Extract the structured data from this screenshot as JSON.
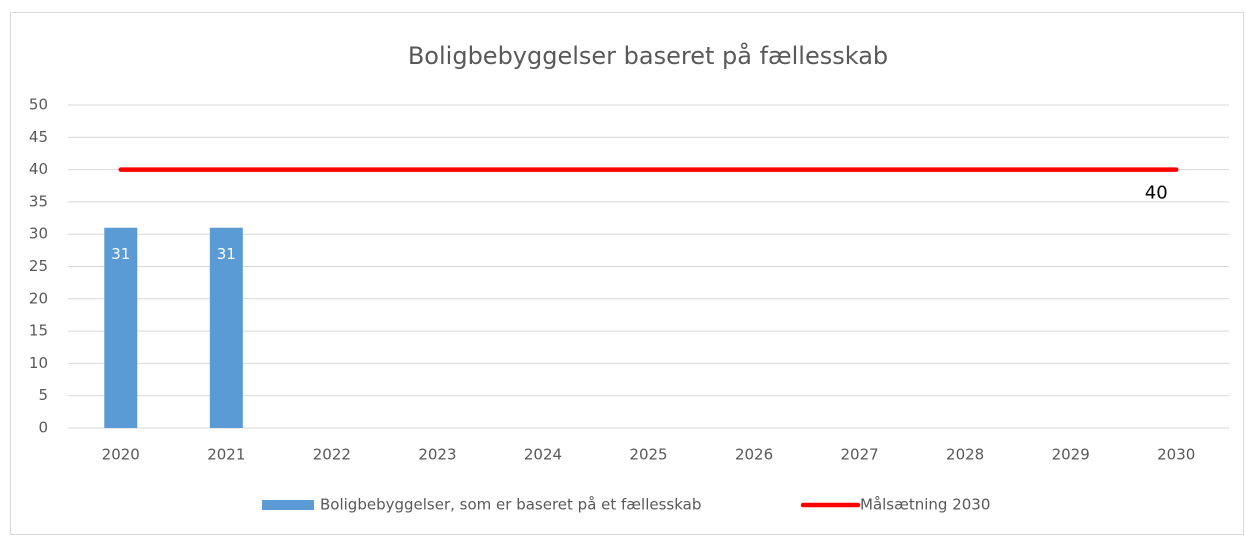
{
  "chart_data": {
    "type": "bar",
    "title": "Boligbebyggelser baseret på fællesskab",
    "categories": [
      "2020",
      "2021",
      "2022",
      "2023",
      "2024",
      "2025",
      "2026",
      "2027",
      "2028",
      "2029",
      "2030"
    ],
    "series": [
      {
        "name": "Boligbebyggelser, som er baseret på et fællesskab",
        "type": "bar",
        "color": "#5b9bd5",
        "values": [
          31,
          31,
          null,
          null,
          null,
          null,
          null,
          null,
          null,
          null,
          null
        ],
        "data_labels": true
      },
      {
        "name": "Målsætning 2030",
        "type": "line",
        "color": "#ff0000",
        "values": [
          40,
          40,
          40,
          40,
          40,
          40,
          40,
          40,
          40,
          40,
          40
        ],
        "value_labels": [
          null,
          null,
          null,
          null,
          null,
          null,
          null,
          null,
          null,
          null,
          "40"
        ]
      }
    ],
    "ylim": [
      0,
      50
    ],
    "yticks": [
      0,
      5,
      10,
      15,
      20,
      25,
      30,
      35,
      40,
      45,
      50
    ],
    "grid": true,
    "legend": "bottom"
  }
}
